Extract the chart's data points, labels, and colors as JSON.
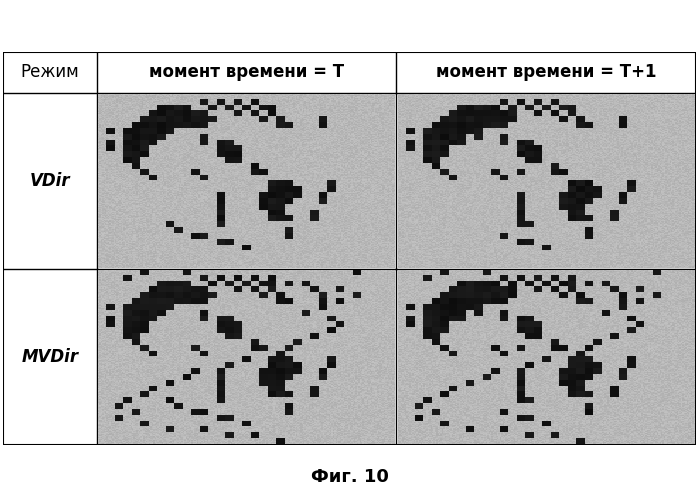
{
  "title": "Фиг. 10",
  "col_header_1": "момент времени = T",
  "col_header_2": "момент времени = T+1",
  "row_header_1": "VDir",
  "row_header_2": "MVDir",
  "corner_header": "Режим",
  "bg_gray": 0.72,
  "dark_val": 0.08,
  "title_fontsize": 13,
  "header_fontsize": 12,
  "row_label_fontsize": 12,
  "grid_rows": 30,
  "grid_cols": 35
}
